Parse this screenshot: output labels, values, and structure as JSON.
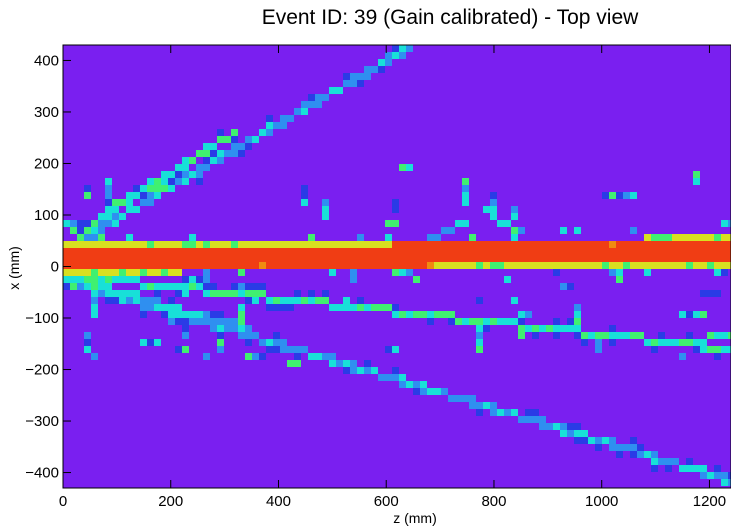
{
  "chart_data": {
    "type": "heatmap",
    "title": "Event ID: 39 (Gain calibrated) - Top view",
    "xlabel": "z (mm)",
    "ylabel": "x (mm)",
    "xlim": [
      0,
      1240
    ],
    "ylim": [
      -430,
      430
    ],
    "x_ticks": [
      0,
      200,
      400,
      600,
      800,
      1000,
      1200
    ],
    "y_ticks": [
      -400,
      -300,
      -200,
      -100,
      0,
      100,
      200,
      300,
      400
    ],
    "x_tick_labels": [
      "0",
      "200",
      "400",
      "600",
      "800",
      "1000",
      "1200"
    ],
    "y_tick_labels": [
      "−400",
      "−300",
      "−200",
      "−100",
      "0",
      "100",
      "200",
      "300",
      "400"
    ],
    "grid": false,
    "colormap": [
      "#7a1ff0",
      "#2a3be6",
      "#2f8ff0",
      "#18e0d8",
      "#40f070",
      "#d8e020",
      "#f08a10",
      "#f03d14"
    ],
    "background_level": 0,
    "tracks": [
      {
        "name": "beam",
        "z_range": [
          0,
          1240
        ],
        "x_start": 15,
        "x_end": 30,
        "width_mm": 45,
        "level": 7
      },
      {
        "name": "upper-track",
        "z_range": [
          0,
          660
        ],
        "x_start": 30,
        "x_end": 435,
        "level": 2
      },
      {
        "name": "upper-track-2",
        "z_range": [
          60,
          320
        ],
        "x_start": 90,
        "x_end": 260,
        "level": 3
      },
      {
        "name": "lower-track-1",
        "z_range": [
          0,
          1240
        ],
        "x_start": -15,
        "x_end": -160,
        "level": 3
      },
      {
        "name": "lower-track-2",
        "z_range": [
          0,
          1240
        ],
        "x_start": -25,
        "x_end": -415,
        "level": 2
      },
      {
        "name": "lower-track-3",
        "z_range": [
          0,
          340
        ],
        "x_start": -20,
        "x_end": -120,
        "level": 2
      }
    ]
  }
}
